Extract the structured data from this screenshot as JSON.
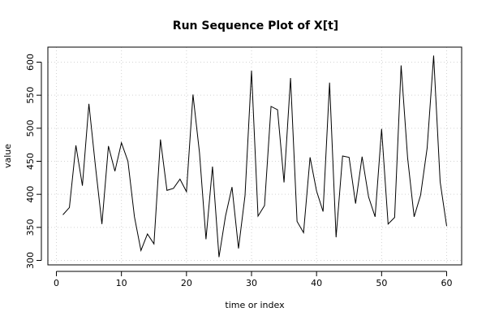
{
  "chart_data": {
    "type": "line",
    "title": "Run Sequence Plot of X[t]",
    "xlabel": "time or index",
    "ylabel": "value",
    "xlim": [
      1,
      60
    ],
    "ylim": [
      305,
      610
    ],
    "x_ticks": [
      0,
      10,
      20,
      30,
      40,
      50,
      60
    ],
    "y_ticks": [
      300,
      350,
      400,
      450,
      500,
      550,
      600
    ],
    "grid": true,
    "series": [
      {
        "x": [
          1,
          2,
          3,
          4,
          5,
          6,
          7,
          8,
          9,
          10,
          11,
          12,
          13,
          14,
          15,
          16,
          17,
          18,
          19,
          20,
          21,
          22,
          23,
          24,
          25,
          26,
          27,
          28,
          29,
          30,
          31,
          32,
          33,
          34,
          35,
          36,
          37,
          38,
          39,
          40,
          41,
          42,
          43,
          44,
          45,
          46,
          47,
          48,
          49,
          50,
          51,
          52,
          53,
          54,
          55,
          56,
          57,
          58,
          59,
          60
        ],
        "values": [
          369,
          380,
          474,
          413,
          537,
          443,
          355,
          473,
          435,
          478,
          450,
          366,
          315,
          340,
          325,
          483,
          406,
          409,
          423,
          404,
          551,
          463,
          332,
          442,
          305,
          367,
          411,
          318,
          398,
          587,
          367,
          383,
          533,
          528,
          418,
          576,
          359,
          342,
          456,
          405,
          374,
          569,
          335,
          458,
          456,
          386,
          457,
          396,
          366,
          499,
          355,
          365,
          595,
          455,
          366,
          399,
          470,
          610,
          419,
          352
        ]
      }
    ]
  }
}
